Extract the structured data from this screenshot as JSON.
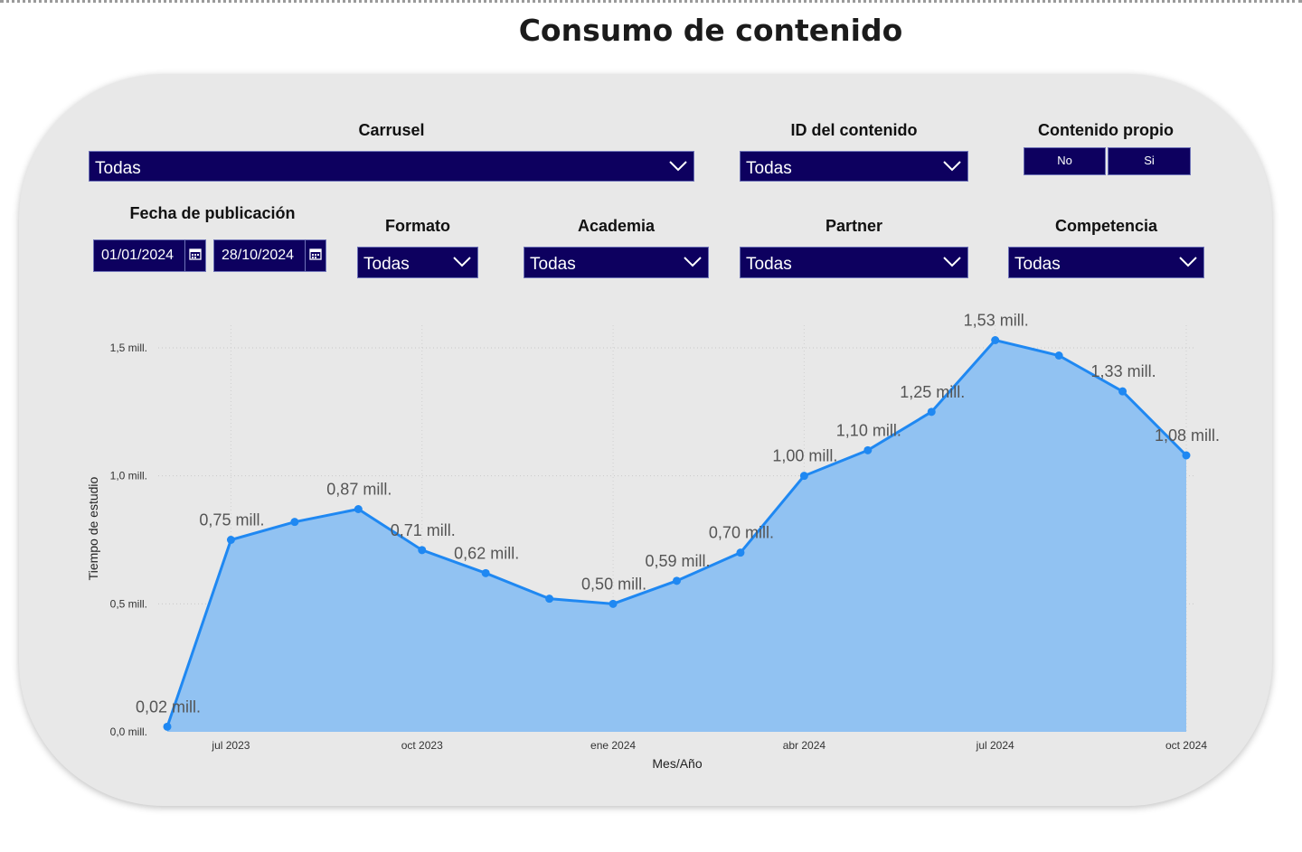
{
  "page_title": "Consumo de contenido",
  "filters": {
    "carrusel": {
      "label": "Carrusel",
      "value": "Todas",
      "icon": "chevron-down-icon"
    },
    "id_contenido": {
      "label": "ID del contenido",
      "value": "Todas",
      "icon": "chevron-down-icon"
    },
    "contenido_propio": {
      "label": "Contenido propio",
      "options": [
        "No",
        "Si"
      ]
    },
    "fecha_publicacion": {
      "label": "Fecha de publicación",
      "start": "01/01/2024",
      "end": "28/10/2024",
      "icon": "calendar-icon"
    },
    "formato": {
      "label": "Formato",
      "value": "Todas",
      "icon": "chevron-down-icon"
    },
    "academia": {
      "label": "Academia",
      "value": "Todas",
      "icon": "chevron-down-icon"
    },
    "partner": {
      "label": "Partner",
      "value": "Todas",
      "icon": "chevron-down-icon"
    },
    "competencia": {
      "label": "Competencia",
      "value": "Todas",
      "icon": "chevron-down-icon"
    }
  },
  "colors": {
    "slicer_bg": "#0d005f",
    "line": "#1f88f2",
    "area": "#91c2f2",
    "panel": "#e8e8e8"
  },
  "chart_data": {
    "type": "area",
    "xlabel": "Mes/Año",
    "ylabel": "Tiempo de estudio",
    "x": [
      "2023-06",
      "2023-07",
      "2023-08",
      "2023-09",
      "2023-10",
      "2023-11",
      "2023-12",
      "2024-01",
      "2024-02",
      "2024-03",
      "2024-04",
      "2024-05",
      "2024-06",
      "2024-07",
      "2024-08",
      "2024-09",
      "2024-10"
    ],
    "values": [
      0.02,
      0.75,
      0.82,
      0.87,
      0.71,
      0.62,
      0.52,
      0.5,
      0.59,
      0.7,
      1.0,
      1.1,
      1.25,
      1.53,
      1.47,
      1.33,
      1.08
    ],
    "data_labels": [
      "0,02 mill.",
      "0,75 mill.",
      "",
      "0,87 mill.",
      "0,71 mill.",
      "0,62 mill.",
      "",
      "0,50 mill.",
      "0,59 mill.",
      "0,70 mill.",
      "1,00 mill.",
      "1,10 mill.",
      "1,25 mill.",
      "1,53 mill.",
      "",
      "1,33 mill.",
      "1,08 mill."
    ],
    "y_ticks": [
      0.0,
      0.5,
      1.0,
      1.5
    ],
    "y_tick_labels": [
      "0,0 mill.",
      "0,5 mill.",
      "1,0 mill.",
      "1,5 mill."
    ],
    "x_ticks": [
      "2023-07",
      "2023-10",
      "2024-01",
      "2024-04",
      "2024-07",
      "2024-10"
    ],
    "x_tick_labels": [
      "jul 2023",
      "oct 2023",
      "ene 2024",
      "abr 2024",
      "jul 2024",
      "oct 2024"
    ],
    "ylim": [
      0,
      1.5
    ],
    "grid": true,
    "legend": "none"
  }
}
